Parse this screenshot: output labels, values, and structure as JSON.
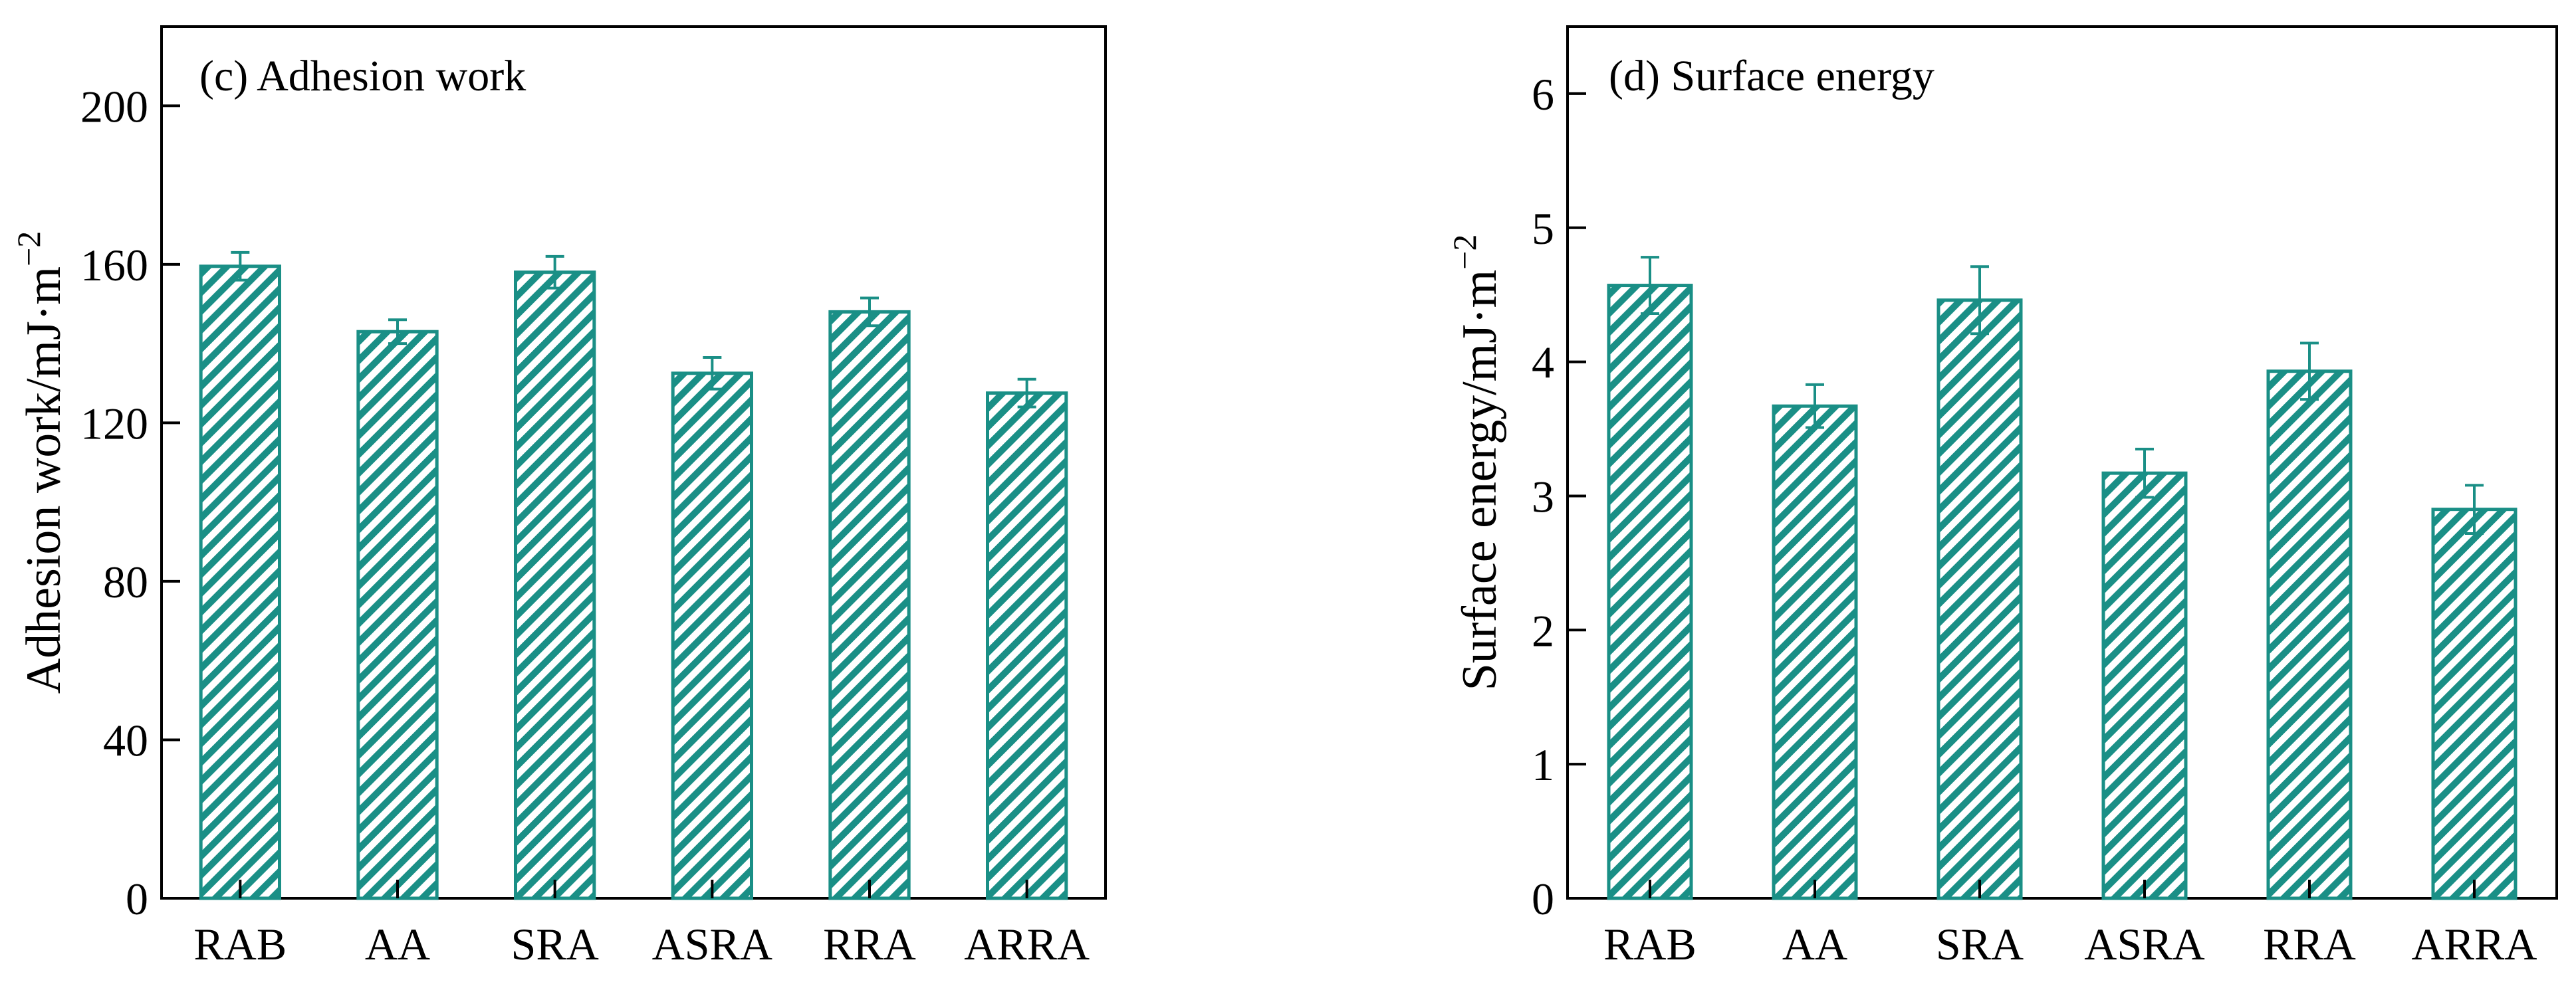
{
  "chart_data": [
    {
      "type": "bar",
      "title": "(c) Adhesion work",
      "xlabel": "",
      "ylabel": "Adhesion work/mJ·m",
      "ylabel_sup": "−2",
      "categories": [
        "RAB",
        "AA",
        "SRA",
        "ASRA",
        "RRA",
        "ARRA"
      ],
      "values": [
        159.5,
        143,
        158,
        132.5,
        148,
        127.5
      ],
      "errors": [
        3.5,
        3,
        4,
        4,
        3.5,
        3.5
      ],
      "ylim": [
        0,
        220
      ],
      "yticks": [
        0,
        40,
        80,
        120,
        160,
        200
      ],
      "color": "#1a8f86",
      "pattern": "diagonal-hatch"
    },
    {
      "type": "bar",
      "title": "(d) Surface energy",
      "xlabel": "",
      "ylabel": "Surface energy/mJ·m",
      "ylabel_sup": "−2",
      "categories": [
        "RAB",
        "AA",
        "SRA",
        "ASRA",
        "RRA",
        "ARRA"
      ],
      "values": [
        4.57,
        3.67,
        4.46,
        3.17,
        3.93,
        2.9
      ],
      "errors": [
        0.21,
        0.16,
        0.25,
        0.18,
        0.21,
        0.18
      ],
      "ylim": [
        0,
        6.5
      ],
      "yticks": [
        0,
        1,
        2,
        3,
        4,
        5,
        6
      ],
      "color": "#1a8f86",
      "pattern": "diagonal-hatch"
    }
  ]
}
